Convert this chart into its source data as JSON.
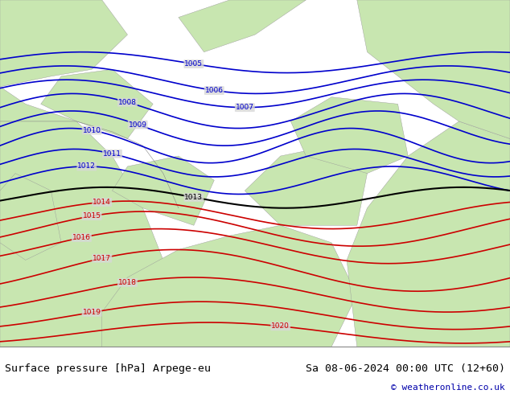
{
  "title_left": "Surface pressure [hPa] Arpege-eu",
  "title_right": "Sa 08-06-2024 00:00 UTC (12+60)",
  "copyright": "© weatheronline.co.uk",
  "bg_color": "#d8d8d8",
  "land_color": "#c8e6b0",
  "sea_color": "#d8d8d8",
  "blue_contour_color": "#0000cc",
  "black_contour_color": "#000000",
  "red_contour_color": "#cc0000",
  "footer_bg": "#ffffff",
  "footer_text_color": "#000000",
  "blue_levels": [
    1005,
    1006,
    1007,
    1008,
    1009,
    1010,
    1011,
    1012
  ],
  "black_levels": [
    1013
  ],
  "red_levels": [
    1014,
    1015,
    1016,
    1017,
    1018,
    1019,
    1020
  ],
  "figsize": [
    6.34,
    4.9
  ],
  "dpi": 100
}
